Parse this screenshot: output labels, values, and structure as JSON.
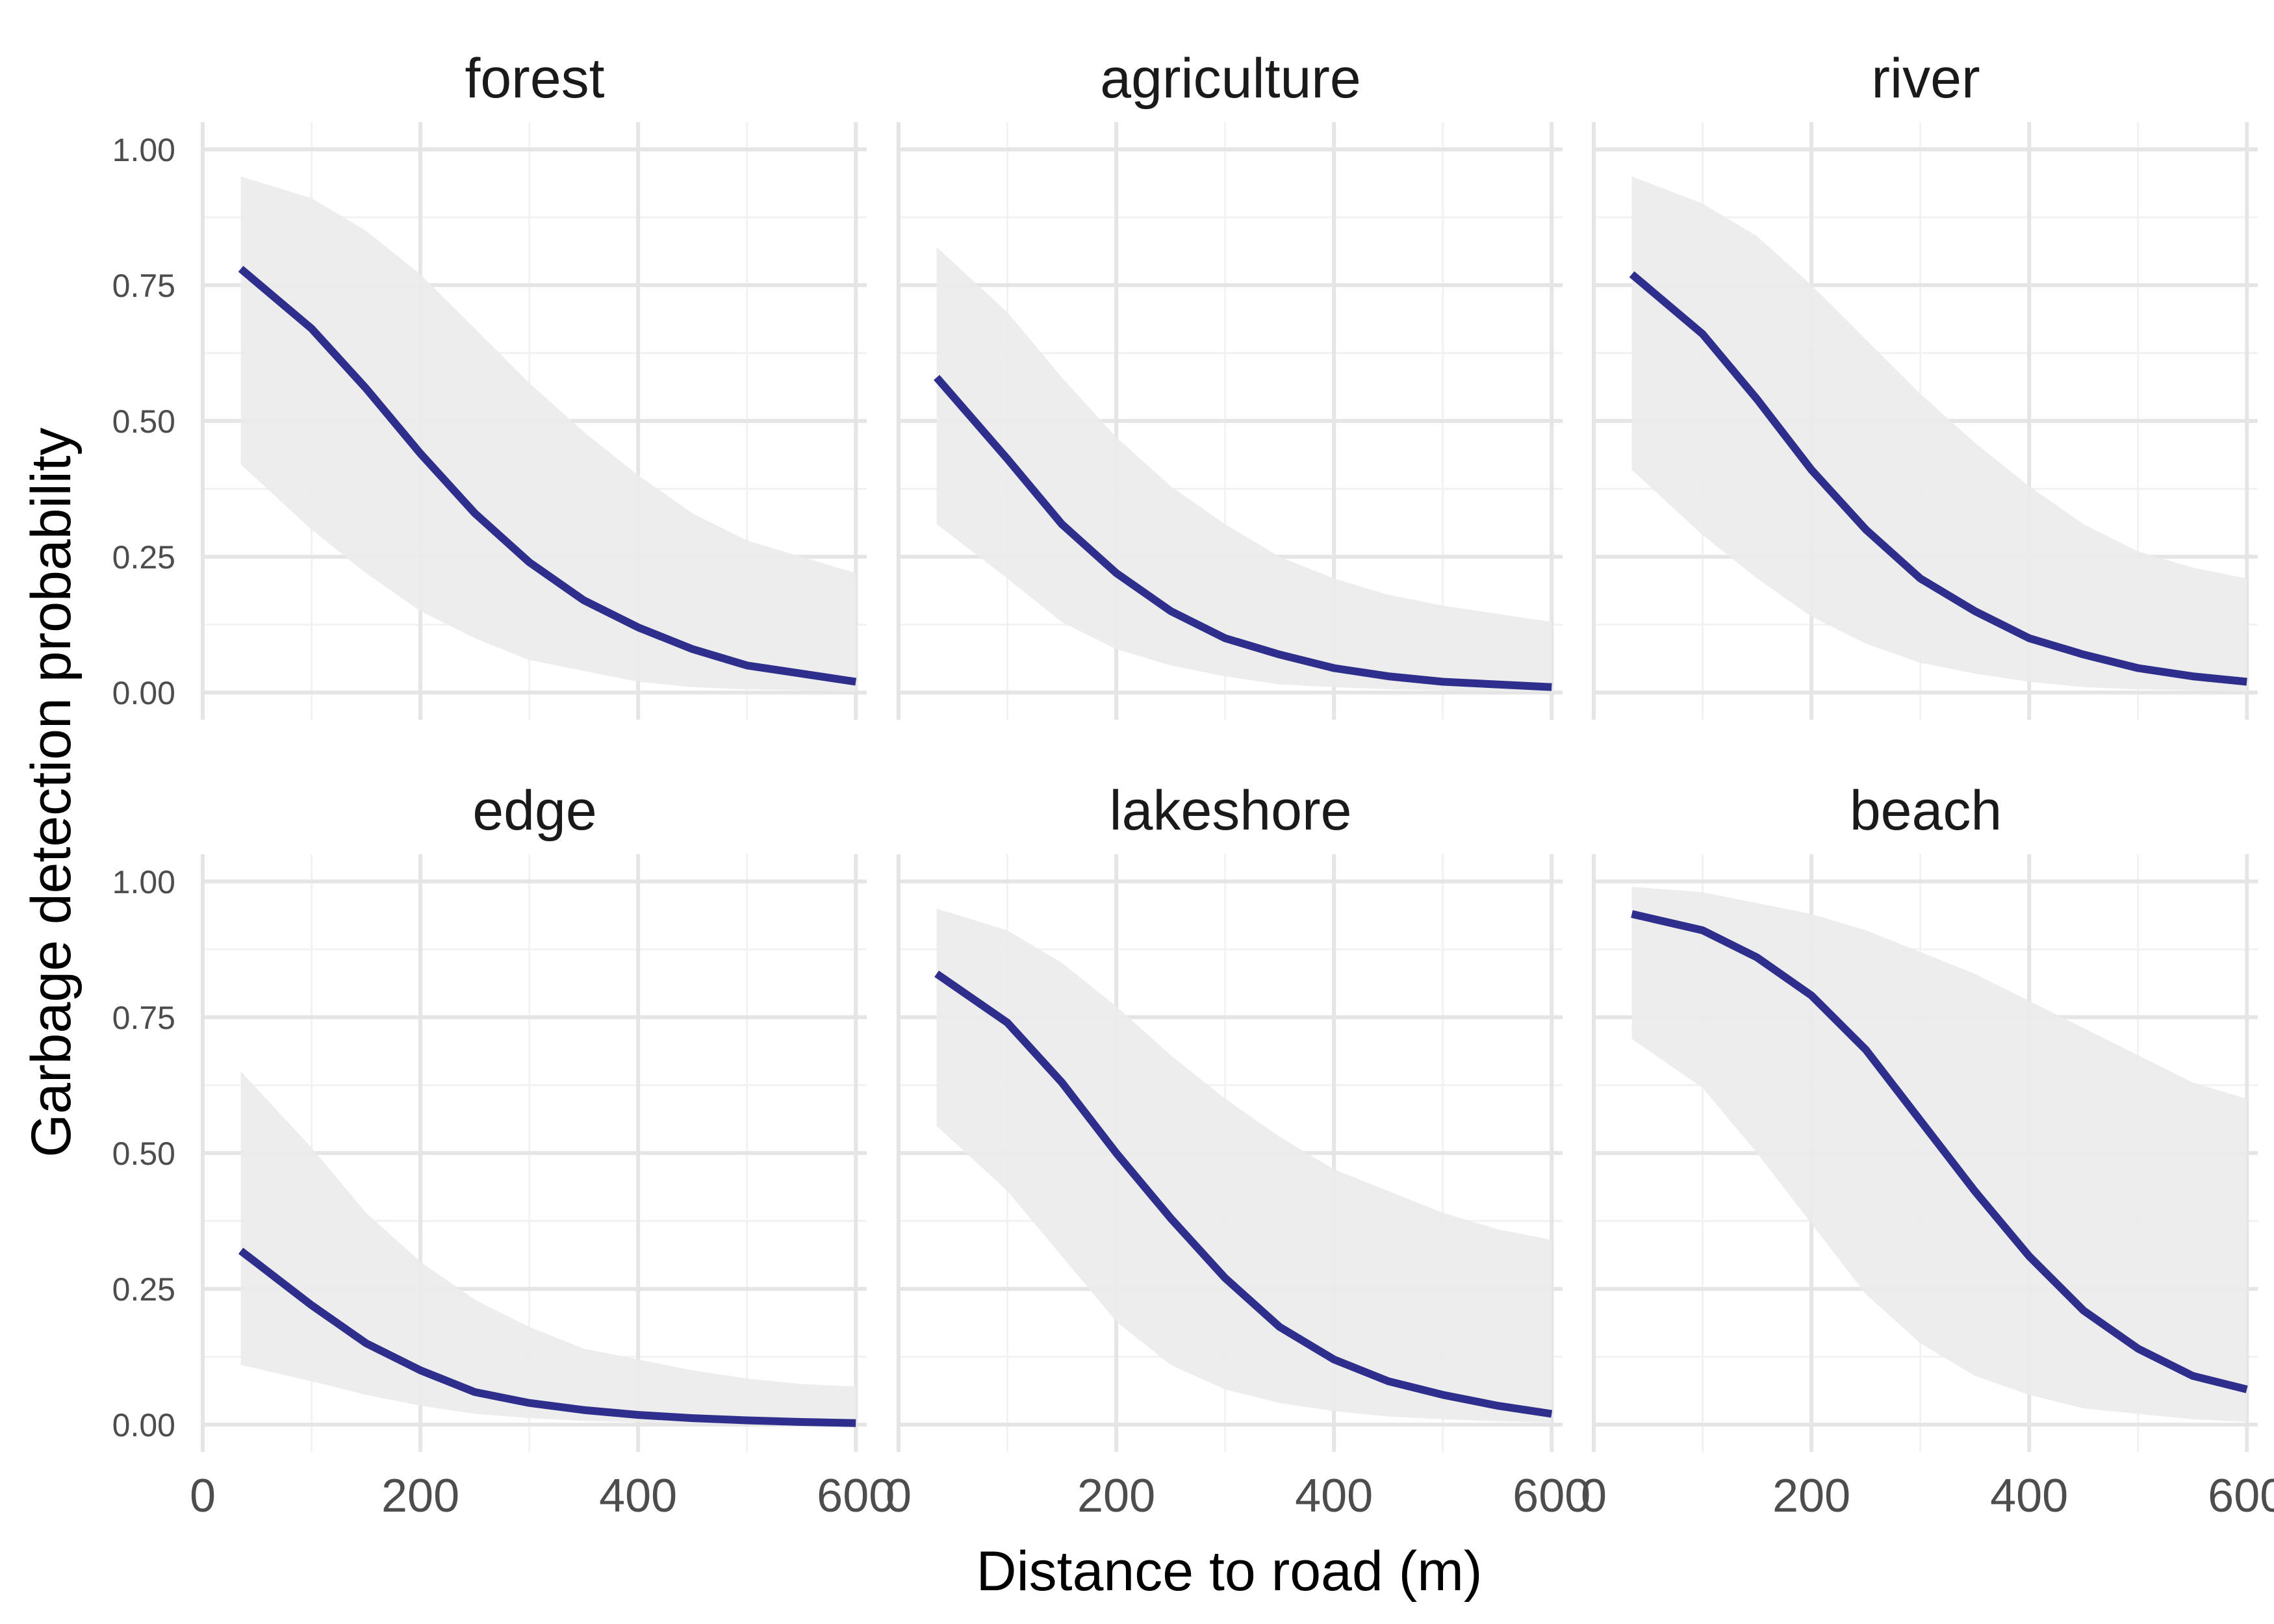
{
  "chart_data": {
    "type": "line",
    "xlabel": "Distance to road (m)",
    "ylabel": "Garbage detection probability",
    "xlim": [
      0,
      610
    ],
    "ylim": [
      0,
      1
    ],
    "x_ticks": [
      0,
      200,
      400,
      600
    ],
    "y_ticks": [
      0,
      0.25,
      0.5,
      0.75,
      1
    ],
    "y_tick_labels": [
      "0.00",
      "0.25",
      "0.50",
      "0.75",
      "1.00"
    ],
    "grid": true,
    "legend": "none",
    "colors": {
      "line": "#2e2f8c",
      "ribbon": "#ebebeb",
      "grid_major": "#e5e5e5",
      "grid_minor": "#f2f2f2"
    },
    "x": [
      35,
      100,
      150,
      200,
      250,
      300,
      350,
      400,
      450,
      500,
      550,
      600
    ],
    "panels": [
      {
        "name": "forest",
        "values": [
          0.78,
          0.67,
          0.56,
          0.44,
          0.33,
          0.24,
          0.17,
          0.12,
          0.08,
          0.05,
          0.035,
          0.02
        ],
        "lower": [
          0.42,
          0.3,
          0.22,
          0.15,
          0.1,
          0.06,
          0.04,
          0.02,
          0.01,
          0.006,
          0.004,
          0.002
        ],
        "upper": [
          0.95,
          0.91,
          0.85,
          0.77,
          0.67,
          0.57,
          0.48,
          0.4,
          0.33,
          0.28,
          0.25,
          0.22
        ]
      },
      {
        "name": "agriculture",
        "values": [
          0.58,
          0.43,
          0.31,
          0.22,
          0.15,
          0.1,
          0.07,
          0.045,
          0.03,
          0.02,
          0.015,
          0.01
        ],
        "lower": [
          0.31,
          0.21,
          0.13,
          0.08,
          0.05,
          0.03,
          0.015,
          0.01,
          0.006,
          0.004,
          0.002,
          0.001
        ],
        "upper": [
          0.82,
          0.7,
          0.58,
          0.47,
          0.38,
          0.31,
          0.25,
          0.21,
          0.18,
          0.16,
          0.145,
          0.13
        ]
      },
      {
        "name": "river",
        "values": [
          0.77,
          0.66,
          0.54,
          0.41,
          0.3,
          0.21,
          0.15,
          0.1,
          0.07,
          0.045,
          0.03,
          0.02
        ],
        "lower": [
          0.41,
          0.29,
          0.21,
          0.14,
          0.09,
          0.055,
          0.035,
          0.02,
          0.01,
          0.006,
          0.004,
          0.002
        ],
        "upper": [
          0.95,
          0.9,
          0.84,
          0.75,
          0.65,
          0.55,
          0.46,
          0.38,
          0.31,
          0.26,
          0.23,
          0.21
        ]
      },
      {
        "name": "edge",
        "values": [
          0.32,
          0.22,
          0.15,
          0.1,
          0.06,
          0.04,
          0.027,
          0.018,
          0.012,
          0.008,
          0.005,
          0.003
        ],
        "lower": [
          0.11,
          0.08,
          0.055,
          0.035,
          0.02,
          0.012,
          0.007,
          0.004,
          0.002,
          0.001,
          0.001,
          0.0
        ],
        "upper": [
          0.65,
          0.51,
          0.39,
          0.3,
          0.23,
          0.18,
          0.14,
          0.12,
          0.1,
          0.085,
          0.075,
          0.07
        ]
      },
      {
        "name": "lakeshore",
        "values": [
          0.83,
          0.74,
          0.63,
          0.5,
          0.38,
          0.27,
          0.18,
          0.12,
          0.08,
          0.055,
          0.035,
          0.02
        ],
        "lower": [
          0.55,
          0.43,
          0.31,
          0.19,
          0.11,
          0.065,
          0.04,
          0.025,
          0.015,
          0.01,
          0.006,
          0.004
        ],
        "upper": [
          0.95,
          0.91,
          0.85,
          0.77,
          0.68,
          0.6,
          0.53,
          0.47,
          0.43,
          0.39,
          0.36,
          0.34
        ]
      },
      {
        "name": "beach",
        "values": [
          0.94,
          0.91,
          0.86,
          0.79,
          0.69,
          0.56,
          0.43,
          0.31,
          0.21,
          0.14,
          0.09,
          0.065
        ],
        "lower": [
          0.71,
          0.62,
          0.5,
          0.37,
          0.24,
          0.15,
          0.09,
          0.055,
          0.03,
          0.02,
          0.01,
          0.005
        ],
        "upper": [
          0.99,
          0.98,
          0.96,
          0.94,
          0.91,
          0.87,
          0.83,
          0.78,
          0.73,
          0.68,
          0.63,
          0.6
        ]
      }
    ]
  }
}
